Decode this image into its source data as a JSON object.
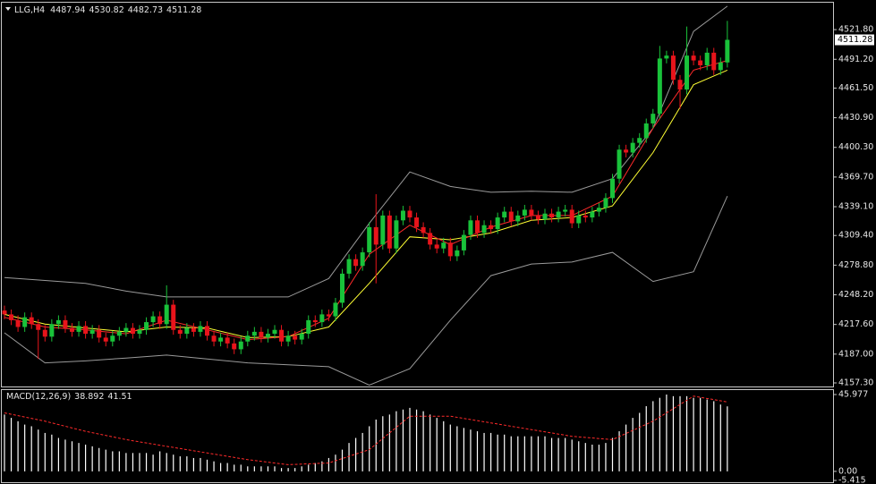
{
  "chart_data": [
    {
      "type": "candlestick",
      "title": "LLG,H4",
      "up_color": "#19c23a",
      "down_color": "#e8141b",
      "ylim": [
        4153.6,
        4549.6
      ],
      "yticks": [
        {
          "value": 4521.8,
          "label": "4521.80"
        },
        {
          "value": 4491.2,
          "label": "4491.20"
        },
        {
          "value": 4461.5,
          "label": "4461.50"
        },
        {
          "value": 4430.9,
          "label": "4430.90"
        },
        {
          "value": 4400.3,
          "label": "4400.30"
        },
        {
          "value": 4369.7,
          "label": "4369.70"
        },
        {
          "value": 4339.1,
          "label": "4339.10"
        },
        {
          "value": 4309.4,
          "label": "4309.40"
        },
        {
          "value": 4278.8,
          "label": "4278.80"
        },
        {
          "value": 4248.2,
          "label": "4248.20"
        },
        {
          "value": 4217.6,
          "label": "4217.60"
        },
        {
          "value": 4187,
          "label": "4187.00"
        },
        {
          "value": 4157.3,
          "label": "4157.30"
        }
      ],
      "open": [
        4232,
        4228,
        4222,
        4215,
        4225,
        4218,
        4212,
        4205,
        4218,
        4222,
        4214,
        4210,
        4216,
        4208,
        4212,
        4204,
        4200,
        4206,
        4210,
        4214,
        4208,
        4212,
        4220,
        4226,
        4218,
        4238,
        4212,
        4208,
        4214,
        4210,
        4216,
        4206,
        4200,
        4204,
        4198,
        4192,
        4200,
        4206,
        4210,
        4204,
        4208,
        4212,
        4200,
        4206,
        4202,
        4208,
        4222,
        4220,
        4228,
        4226,
        4240,
        4270,
        4285,
        4278,
        4292,
        4318,
        4300,
        4330,
        4296,
        4325,
        4335,
        4328,
        4318,
        4312,
        4300,
        4296,
        4302,
        4288,
        4294,
        4310,
        4325,
        4312,
        4320,
        4316,
        4328,
        4334,
        4324,
        4330,
        4336,
        4330,
        4326,
        4332,
        4328,
        4334,
        4336,
        4322,
        4330,
        4328,
        4334,
        4338,
        4348,
        4368,
        4398,
        4395,
        4405,
        4410,
        4425,
        4435,
        4492,
        4495,
        4470,
        4460,
        4495,
        4490,
        4485,
        4498,
        4480,
        4487.94
      ],
      "high": [
        4237,
        4233,
        4227,
        4230,
        4230,
        4223,
        4217,
        4223,
        4227,
        4227,
        4219,
        4221,
        4221,
        4217,
        4217,
        4209,
        4211,
        4215,
        4219,
        4219,
        4217,
        4225,
        4231,
        4231,
        4258,
        4243,
        4217,
        4219,
        4219,
        4221,
        4221,
        4211,
        4209,
        4209,
        4203,
        4205,
        4211,
        4215,
        4215,
        4213,
        4217,
        4217,
        4211,
        4211,
        4213,
        4227,
        4227,
        4233,
        4233,
        4245,
        4275,
        4290,
        4290,
        4297,
        4323,
        4352,
        4335,
        4335,
        4330,
        4340,
        4340,
        4333,
        4323,
        4317,
        4305,
        4307,
        4307,
        4299,
        4315,
        4330,
        4330,
        4325,
        4325,
        4333,
        4339,
        4339,
        4335,
        4341,
        4341,
        4335,
        4337,
        4337,
        4339,
        4341,
        4341,
        4335,
        4335,
        4339,
        4343,
        4353,
        4373,
        4403,
        4403,
        4410,
        4415,
        4430,
        4440,
        4505,
        4500,
        4500,
        4475,
        4525,
        4500,
        4495,
        4503,
        4503,
        4493,
        4530.82
      ],
      "low": [
        4223,
        4217,
        4210,
        4210,
        4213,
        4182,
        4200,
        4200,
        4213,
        4209,
        4205,
        4205,
        4203,
        4203,
        4199,
        4195,
        4195,
        4201,
        4205,
        4203,
        4203,
        4207,
        4215,
        4213,
        4213,
        4207,
        4203,
        4203,
        4205,
        4205,
        4201,
        4195,
        4195,
        4193,
        4187,
        4187,
        4195,
        4201,
        4199,
        4199,
        4203,
        4195,
        4195,
        4197,
        4197,
        4203,
        4215,
        4215,
        4221,
        4221,
        4235,
        4265,
        4273,
        4273,
        4287,
        4260,
        4295,
        4291,
        4291,
        4320,
        4323,
        4313,
        4307,
        4295,
        4291,
        4291,
        4283,
        4283,
        4289,
        4305,
        4307,
        4307,
        4311,
        4311,
        4323,
        4319,
        4319,
        4325,
        4325,
        4321,
        4321,
        4323,
        4323,
        4329,
        4317,
        4317,
        4323,
        4323,
        4329,
        4333,
        4343,
        4363,
        4390,
        4390,
        4400,
        4405,
        4420,
        4430,
        4487,
        4465,
        4440,
        4455,
        4485,
        4480,
        4480,
        4475,
        4475,
        4482.73
      ],
      "close": [
        4228,
        4222,
        4215,
        4225,
        4218,
        4212,
        4205,
        4218,
        4222,
        4214,
        4210,
        4216,
        4208,
        4212,
        4204,
        4200,
        4206,
        4210,
        4214,
        4208,
        4212,
        4220,
        4226,
        4218,
        4238,
        4212,
        4208,
        4214,
        4210,
        4216,
        4206,
        4200,
        4204,
        4198,
        4192,
        4200,
        4206,
        4210,
        4204,
        4208,
        4212,
        4200,
        4206,
        4202,
        4208,
        4222,
        4220,
        4228,
        4226,
        4240,
        4270,
        4285,
        4278,
        4292,
        4318,
        4300,
        4330,
        4296,
        4325,
        4335,
        4328,
        4318,
        4312,
        4300,
        4296,
        4302,
        4288,
        4294,
        4310,
        4325,
        4312,
        4320,
        4316,
        4328,
        4334,
        4324,
        4330,
        4336,
        4330,
        4326,
        4332,
        4328,
        4334,
        4336,
        4322,
        4330,
        4328,
        4334,
        4338,
        4348,
        4368,
        4398,
        4395,
        4405,
        4410,
        4425,
        4435,
        4492,
        4495,
        4470,
        4460,
        4495,
        4490,
        4485,
        4498,
        4480,
        4487.94,
        4511.28
      ],
      "lines": [
        {
          "color": "#9a9a9a",
          "x": [
            0,
            6,
            12,
            18,
            24,
            30,
            36,
            42,
            48,
            54,
            60,
            66,
            72,
            78,
            84,
            90,
            96,
            102,
            107
          ],
          "values": [
            4266,
            4263,
            4260,
            4252,
            4246,
            4246,
            4246,
            4246,
            4265,
            4322,
            4375,
            4360,
            4354,
            4355,
            4354,
            4368,
            4420,
            4520,
            4546
          ]
        },
        {
          "color": "#9a9a9a",
          "x": [
            0,
            6,
            12,
            18,
            24,
            30,
            36,
            42,
            48,
            54,
            60,
            66,
            72,
            78,
            84,
            90,
            96,
            102,
            107
          ],
          "values": [
            4209,
            4178,
            4180,
            4183,
            4186,
            4182,
            4178,
            4176,
            4174,
            4155,
            4172,
            4222,
            4268,
            4280,
            4282,
            4292,
            4262,
            4272,
            4350
          ]
        },
        {
          "color": "#ffff33",
          "x": [
            0,
            6,
            12,
            18,
            24,
            30,
            36,
            42,
            48,
            54,
            60,
            66,
            72,
            78,
            84,
            90,
            96,
            102,
            107
          ],
          "values": [
            4228,
            4218,
            4214,
            4210,
            4215,
            4214,
            4204,
            4205,
            4215,
            4260,
            4308,
            4305,
            4312,
            4325,
            4328,
            4340,
            4395,
            4465,
            4480
          ]
        },
        {
          "color": "#ff2a2a",
          "x": [
            0,
            6,
            12,
            18,
            24,
            30,
            36,
            42,
            48,
            54,
            60,
            66,
            72,
            78,
            84,
            90,
            96,
            102,
            107
          ],
          "values": [
            4225,
            4215,
            4212,
            4208,
            4222,
            4212,
            4202,
            4205,
            4224,
            4290,
            4320,
            4300,
            4318,
            4330,
            4330,
            4350,
            4420,
            4480,
            4490
          ]
        }
      ]
    },
    {
      "type": "macd",
      "title": "MACD(12,26,9)",
      "color": "#ffffff",
      "ylim": [
        -5.415,
        45.977
      ],
      "yticks": [
        {
          "value": -5.415,
          "label": "-5.415"
        },
        {
          "value": 0,
          "label": "0.00"
        },
        45.977
      ],
      "values": [
        34,
        32,
        30,
        28,
        27,
        25,
        23,
        22,
        20,
        19,
        18,
        17,
        16,
        15,
        14,
        13,
        12,
        12,
        11,
        11,
        11,
        11,
        10,
        12,
        11,
        10,
        9,
        9,
        8,
        8,
        7,
        6,
        5,
        5,
        4,
        4,
        3,
        3,
        3,
        3,
        3,
        2,
        2,
        2,
        3,
        4,
        5,
        6,
        8,
        10,
        13,
        17,
        20,
        23,
        27,
        31,
        33,
        34,
        36,
        37,
        38,
        37,
        36,
        34,
        32,
        30,
        28,
        27,
        26,
        25,
        24,
        23,
        23,
        22,
        22,
        21,
        21,
        21,
        21,
        21,
        21,
        20,
        20,
        20,
        19,
        18,
        17,
        16,
        16,
        17,
        20,
        24,
        28,
        32,
        35,
        39,
        42,
        44,
        45.977,
        45,
        45,
        45,
        44,
        44,
        43,
        42,
        40,
        38.892
      ],
      "signal": {
        "color": "#ff2a2a",
        "x": [
          0,
          6,
          12,
          18,
          24,
          30,
          36,
          42,
          48,
          54,
          60,
          66,
          72,
          78,
          84,
          90,
          96,
          102,
          107
        ],
        "values": [
          35,
          30,
          24,
          19,
          15,
          11,
          7,
          4,
          5,
          13,
          33,
          33,
          29,
          25,
          21,
          19,
          30,
          45,
          41.51
        ]
      }
    }
  ]
}
